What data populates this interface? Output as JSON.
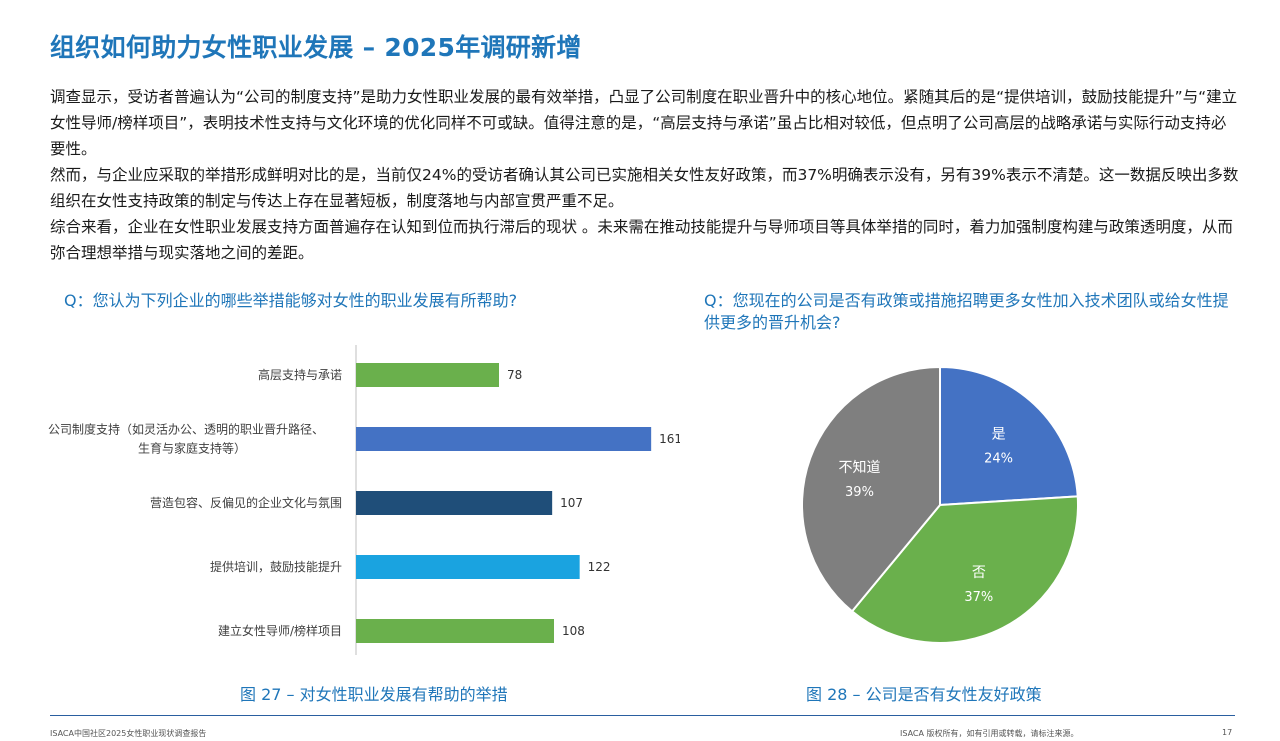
{
  "page": {
    "title": "组织如何助力女性职业发展 – 2025年调研新增",
    "paragraphs": [
      "调查显示，受访者普遍认为“公司的制度支持”是助力女性职业发展的最有效举措，凸显了公司制度在职业晋升中的核心地位。紧随其后的是“提供培训，鼓励技能提升”与“建立女性导师/榜样项目”，表明技术性支持与文化环境的优化同样不可或缺。值得注意的是，“高层支持与承诺”虽占比相对较低，但点明了公司高层的战略承诺与实际行动支持必要性。",
      "然而，与企业应采取的举措形成鲜明对比的是，当前仅24%的受访者确认其公司已实施相关女性友好政策，而37%明确表示没有，另有39%表示不清楚。这一数据反映出多数组织在女性支持政策的制定与传达上存在显著短板，制度落地与内部宣贯严重不足。",
      "综合来看，企业在女性职业发展支持方面普遍存在认知到位而执行滞后的现状 。未来需在推动技能提升与导师项目等具体举措的同时，着力加强制度构建与政策透明度，从而弥合理想举措与现实落地之间的差距。"
    ],
    "question_left": "Q：您认为下列企业的哪些举措能够对女性的职业发展有所帮助?",
    "question_right": "Q：您现在的公司是否有政策或措施招聘更多女性加入技术团队或给女性提供更多的晋升机会?",
    "caption_left": "图 27 – 对女性职业发展有帮助的举措",
    "caption_right": "图 28 – 公司是否有女性友好政策",
    "footer_left": "ISACA中国社区2025女性职业现状调查报告",
    "footer_right": "ISACA 版权所有，如有引用或转载，请标注来源。",
    "page_number": "17"
  },
  "chart_data": [
    {
      "type": "bar",
      "orientation": "horizontal",
      "categories": [
        [
          "高层支持与承诺"
        ],
        [
          "公司制度支持（如灵活办公、透明的职业晋升路径、",
          "生育与家庭支持等）"
        ],
        [
          "营造包容、反偏见的企业文化与氛围"
        ],
        [
          "提供培训，鼓励技能提升"
        ],
        [
          "建立女性导师/榜样项目"
        ]
      ],
      "values": [
        78,
        161,
        107,
        122,
        108
      ],
      "colors": [
        "#6ab04c",
        "#4472c4",
        "#1f4e79",
        "#1aa3e0",
        "#6ab04c"
      ],
      "xlim": [
        0,
        180
      ],
      "grid": false,
      "data_labels": true
    },
    {
      "type": "pie",
      "labels": [
        "是",
        "否",
        "不知道"
      ],
      "values": [
        24,
        37,
        39
      ],
      "value_labels": [
        "24%",
        "37%",
        "39%"
      ],
      "colors": [
        "#4472c4",
        "#6ab04c",
        "#7f7f7f"
      ]
    }
  ]
}
